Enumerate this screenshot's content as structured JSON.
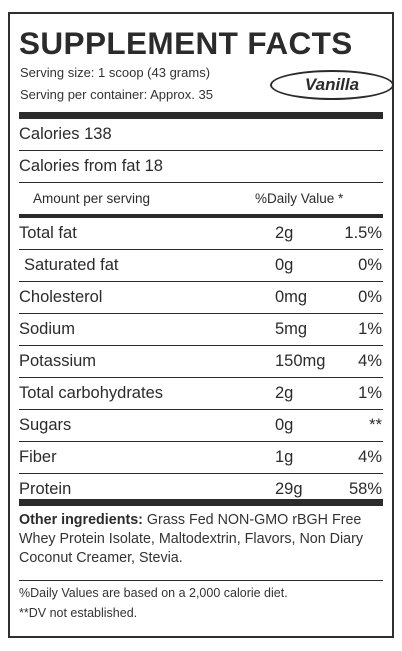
{
  "title": "SUPPLEMENT FACTS",
  "serving_size": "Serving size: 1 scoop (43 grams)",
  "servings_per_container": "Serving per container: Approx. 35",
  "flavor": "Vanilla",
  "calories": "Calories 138",
  "calories_from_fat": "Calories from fat 18",
  "header": {
    "amount_per_serving": "Amount per serving",
    "daily_value": "%Daily Value *"
  },
  "nutrients": [
    {
      "name": "Total fat",
      "amount": "2g",
      "dv": "1.5%"
    },
    {
      "name": "Saturated fat",
      "amount": "0g",
      "dv": "0%"
    },
    {
      "name": "Cholesterol",
      "amount": "0mg",
      "dv": "0%"
    },
    {
      "name": "Sodium",
      "amount": "5mg",
      "dv": "1%"
    },
    {
      "name": "Potassium",
      "amount": "150mg",
      "dv": "4%"
    },
    {
      "name": "Total carbohydrates",
      "amount": "2g",
      "dv": "1%"
    },
    {
      "name": "Sugars",
      "amount": "0g",
      "dv": "**"
    },
    {
      "name": "Fiber",
      "amount": "1g",
      "dv": "4%"
    },
    {
      "name": "Protein",
      "amount": "29g",
      "dv": "58%"
    }
  ],
  "ingredients": {
    "label": "Other ingredients:",
    "text": " Grass Fed NON-GMO rBGH Free Whey Protein Isolate, Maltodextrin, Flavors, Non Diary Coconut Creamer, Stevia."
  },
  "footnotes": {
    "daily_values": "%Daily Values are based on a 2,000 calorie diet.",
    "dv_not_established": "**DV not established."
  }
}
